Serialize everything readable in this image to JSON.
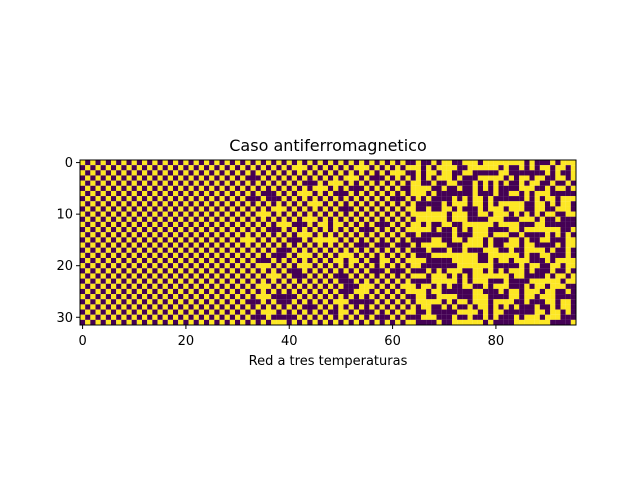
{
  "chart_data": {
    "type": "heatmap",
    "title": "Caso antiferromagnetico",
    "xlabel": "Red a tres temperaturas",
    "ylabel": "",
    "x_ticks": [
      0,
      20,
      40,
      60,
      80
    ],
    "y_ticks": [
      0,
      10,
      20,
      30
    ],
    "x_tick_labels": [
      "0",
      "20",
      "40",
      "60",
      "80"
    ],
    "y_tick_labels": [
      "0",
      "10",
      "20",
      "30"
    ],
    "xlim": [
      -0.5,
      95.5
    ],
    "ylim": [
      31.5,
      -0.5
    ],
    "rows": 32,
    "cols": 96,
    "value_range": [
      -1,
      1
    ],
    "colors": {
      "high": "#fde725",
      "low": "#440154"
    },
    "regions": [
      {
        "cols": [
          0,
          31
        ],
        "description": "perfect checkerboard"
      },
      {
        "cols": [
          32,
          63
        ],
        "description": "mostly checkerboard with defects"
      },
      {
        "cols": [
          64,
          95
        ],
        "description": "disordered"
      }
    ]
  }
}
